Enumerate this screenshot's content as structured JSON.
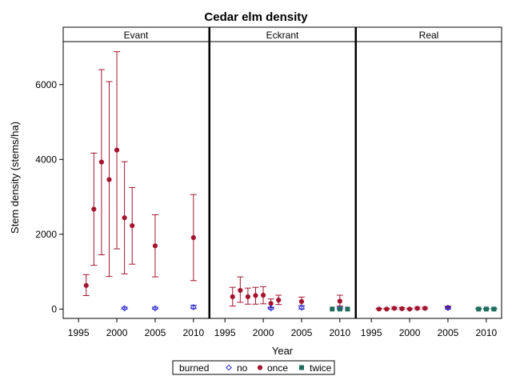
{
  "chart_data": {
    "type": "scatter",
    "title": "Cedar elm density",
    "xlabel": "Year",
    "ylabel": "Stem density (stems/ha)",
    "xlim": [
      1993,
      2012
    ],
    "ylim": [
      -250,
      7150
    ],
    "x_ticks": [
      1995,
      2000,
      2005,
      2010
    ],
    "y_ticks": [
      0,
      2000,
      4000,
      6000
    ],
    "grid": false,
    "legend_position": "bottom",
    "legend": {
      "title": "burned",
      "entries": [
        {
          "name": "no",
          "marker": "diamond-open",
          "color": "#2b2bcc"
        },
        {
          "name": "once",
          "marker": "circle",
          "color": "#a3152f"
        },
        {
          "name": "twice",
          "marker": "square",
          "color": "#1f6e5c"
        }
      ]
    },
    "panels": [
      {
        "name": "Evant",
        "series": [
          {
            "name": "once",
            "points": [
              {
                "x": 1996,
                "y": 630,
                "lo": 360,
                "hi": 920
              },
              {
                "x": 1997,
                "y": 2670,
                "lo": 1170,
                "hi": 4170
              },
              {
                "x": 1998,
                "y": 3930,
                "lo": 1450,
                "hi": 6400
              },
              {
                "x": 1999,
                "y": 3460,
                "lo": 870,
                "hi": 6080
              },
              {
                "x": 2000,
                "y": 4250,
                "lo": 1610,
                "hi": 6880
              },
              {
                "x": 2001,
                "y": 2440,
                "lo": 940,
                "hi": 3940
              },
              {
                "x": 2002,
                "y": 2230,
                "lo": 1200,
                "hi": 3250
              },
              {
                "x": 2005,
                "y": 1690,
                "lo": 860,
                "hi": 2520
              },
              {
                "x": 2010,
                "y": 1910,
                "lo": 760,
                "hi": 3060
              }
            ]
          },
          {
            "name": "no",
            "points": [
              {
                "x": 2001,
                "y": 20,
                "lo": 0,
                "hi": 50
              },
              {
                "x": 2005,
                "y": 20,
                "lo": 0,
                "hi": 50
              },
              {
                "x": 2010,
                "y": 50,
                "lo": 10,
                "hi": 100
              }
            ]
          },
          {
            "name": "twice",
            "points": []
          }
        ]
      },
      {
        "name": "Eckrant",
        "series": [
          {
            "name": "once",
            "points": [
              {
                "x": 1996,
                "y": 330,
                "lo": 80,
                "hi": 580
              },
              {
                "x": 1997,
                "y": 500,
                "lo": 180,
                "hi": 860
              },
              {
                "x": 1998,
                "y": 330,
                "lo": 130,
                "hi": 560
              },
              {
                "x": 1999,
                "y": 360,
                "lo": 130,
                "hi": 580
              },
              {
                "x": 2000,
                "y": 370,
                "lo": 140,
                "hi": 600
              },
              {
                "x": 2001,
                "y": 150,
                "lo": 40,
                "hi": 270
              },
              {
                "x": 2002,
                "y": 240,
                "lo": 120,
                "hi": 370
              },
              {
                "x": 2005,
                "y": 200,
                "lo": 90,
                "hi": 320
              },
              {
                "x": 2010,
                "y": 210,
                "lo": 80,
                "hi": 370
              }
            ]
          },
          {
            "name": "no",
            "points": [
              {
                "x": 2001,
                "y": 20,
                "lo": 0,
                "hi": 50
              },
              {
                "x": 2005,
                "y": 40,
                "lo": 0,
                "hi": 90
              },
              {
                "x": 2010,
                "y": 20,
                "lo": 0,
                "hi": 50
              }
            ]
          },
          {
            "name": "twice",
            "points": [
              {
                "x": 2009,
                "y": 0,
                "lo": 0,
                "hi": 0
              },
              {
                "x": 2010,
                "y": 0,
                "lo": 0,
                "hi": 0
              },
              {
                "x": 2011,
                "y": 0,
                "lo": 0,
                "hi": 0
              }
            ]
          }
        ]
      },
      {
        "name": "Real",
        "series": [
          {
            "name": "once",
            "points": [
              {
                "x": 1996,
                "y": 0,
                "lo": 0,
                "hi": 20
              },
              {
                "x": 1997,
                "y": 0,
                "lo": 0,
                "hi": 20
              },
              {
                "x": 1998,
                "y": 20,
                "lo": 0,
                "hi": 50
              },
              {
                "x": 1999,
                "y": 10,
                "lo": 0,
                "hi": 40
              },
              {
                "x": 2000,
                "y": 0,
                "lo": 0,
                "hi": 20
              },
              {
                "x": 2001,
                "y": 20,
                "lo": 0,
                "hi": 50
              },
              {
                "x": 2002,
                "y": 20,
                "lo": 0,
                "hi": 50
              },
              {
                "x": 2005,
                "y": 40,
                "lo": 0,
                "hi": 80
              }
            ]
          },
          {
            "name": "no",
            "points": [
              {
                "x": 2005,
                "y": 30,
                "lo": 0,
                "hi": 60
              }
            ]
          },
          {
            "name": "twice",
            "points": [
              {
                "x": 2009,
                "y": 0,
                "lo": 0,
                "hi": 20
              },
              {
                "x": 2010,
                "y": 0,
                "lo": 0,
                "hi": 20
              },
              {
                "x": 2011,
                "y": 0,
                "lo": 0,
                "hi": 20
              }
            ]
          }
        ]
      }
    ]
  }
}
